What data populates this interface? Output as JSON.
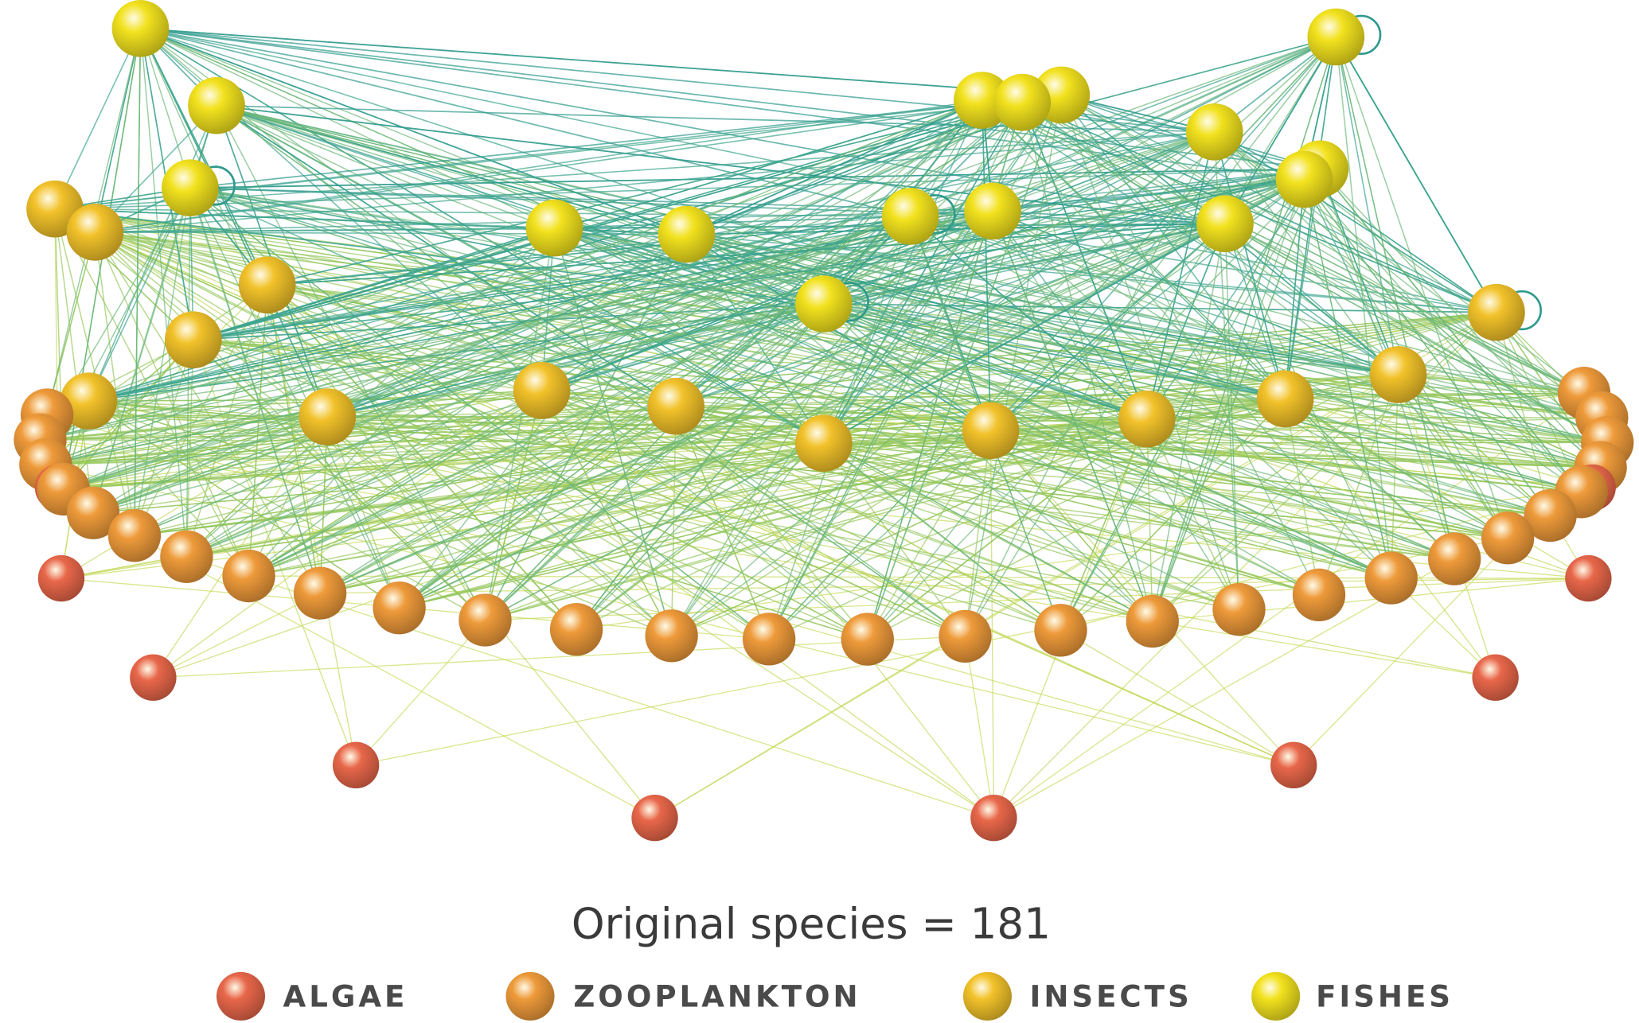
{
  "caption": "Original species = 181",
  "legend": [
    {
      "label": "ALGAE",
      "color": "#e8674a"
    },
    {
      "label": "ZOOPLANKTON",
      "color": "#ee9a3a"
    },
    {
      "label": "INSECTS",
      "color": "#f2c22a"
    },
    {
      "label": "FISHES",
      "color": "#f2e21e"
    }
  ]
}
